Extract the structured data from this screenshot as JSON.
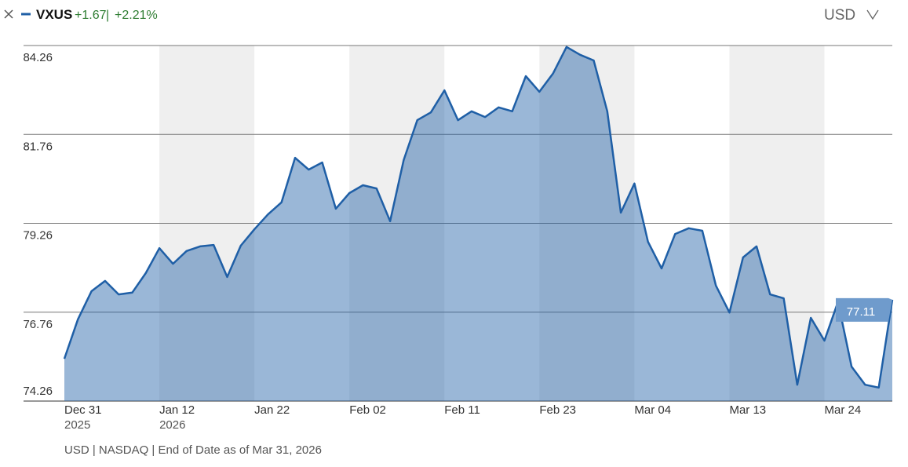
{
  "chart_data": {
    "type": "line",
    "ticker": "VXUS",
    "change": "+1.67",
    "separator": "|",
    "change_pct": "+2.21%",
    "currency": "USD",
    "footer": "USD | NASDAQ | End of Date as of Mar 31, 2026",
    "categories": [
      "Dec 31",
      null,
      null,
      null,
      null,
      null,
      null,
      "Jan 12",
      null,
      null,
      null,
      null,
      null,
      null,
      "Jan 22",
      null,
      null,
      null,
      null,
      null,
      null,
      "Feb 02",
      null,
      null,
      null,
      null,
      null,
      null,
      "Feb 11",
      null,
      null,
      null,
      null,
      null,
      null,
      "Feb 23",
      null,
      null,
      null,
      null,
      null,
      null,
      "Mar 04",
      null,
      null,
      null,
      null,
      null,
      null,
      "Mar 13",
      null,
      null,
      null,
      null,
      null,
      null,
      "Mar 24",
      null,
      null,
      null,
      null,
      null
    ],
    "category_years": [
      "2025",
      null,
      null,
      null,
      null,
      null,
      null,
      "2026",
      null,
      null,
      null,
      null,
      null,
      null,
      null,
      null,
      null,
      null,
      null,
      null,
      null,
      null,
      null,
      null,
      null,
      null,
      null,
      null,
      null,
      null,
      null,
      null,
      null,
      null,
      null,
      null,
      null,
      null,
      null,
      null,
      null,
      null,
      null,
      null,
      null,
      null,
      null,
      null,
      null,
      null,
      null,
      null,
      null,
      null,
      null,
      null,
      null,
      null,
      null,
      null,
      null,
      null
    ],
    "series": [
      {
        "name": "VXUS",
        "color": "#1f5fa6",
        "values": [
          75.45,
          76.56,
          77.35,
          77.64,
          77.26,
          77.31,
          77.86,
          78.56,
          78.12,
          78.48,
          78.61,
          78.65,
          77.75,
          78.63,
          79.09,
          79.51,
          79.85,
          81.1,
          80.77,
          80.97,
          79.67,
          80.11,
          80.33,
          80.24,
          79.32,
          81.04,
          82.16,
          82.38,
          83.0,
          82.16,
          82.41,
          82.25,
          82.52,
          82.41,
          83.4,
          82.96,
          83.47,
          84.22,
          84.0,
          83.84,
          82.41,
          79.56,
          80.38,
          78.74,
          77.99,
          78.96,
          79.12,
          79.05,
          77.51,
          76.75,
          78.3,
          78.61,
          77.26,
          77.15,
          74.72,
          76.6,
          75.96,
          77.05,
          75.23,
          74.72,
          74.64,
          77.11
        ]
      }
    ],
    "ylim": [
      74.26,
      84.26
    ],
    "yticks": [
      74.26,
      76.76,
      79.26,
      81.76,
      84.26
    ],
    "grid": true
  }
}
